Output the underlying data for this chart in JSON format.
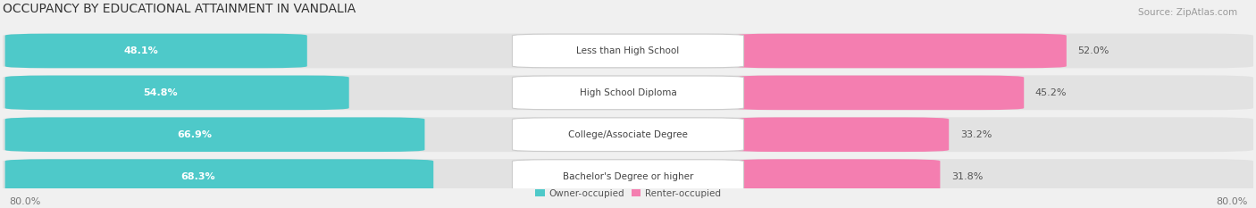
{
  "title": "OCCUPANCY BY EDUCATIONAL ATTAINMENT IN VANDALIA",
  "source": "Source: ZipAtlas.com",
  "categories": [
    "Less than High School",
    "High School Diploma",
    "College/Associate Degree",
    "Bachelor's Degree or higher"
  ],
  "owner_values": [
    48.1,
    54.8,
    66.9,
    68.3
  ],
  "renter_values": [
    52.0,
    45.2,
    33.2,
    31.8
  ],
  "owner_color": "#4EC9C9",
  "renter_color": "#F47EB0",
  "background_color": "#f0f0f0",
  "bar_background": "#e2e2e2",
  "owner_label_inside": [
    true,
    true,
    true,
    true
  ],
  "renter_label_inside": [
    true,
    false,
    false,
    false
  ],
  "legend_owner": "Owner-occupied",
  "legend_renter": "Renter-occupied",
  "title_fontsize": 10,
  "source_fontsize": 7.5,
  "label_fontsize": 7.5,
  "bar_value_fontsize": 8,
  "tick_fontsize": 8
}
